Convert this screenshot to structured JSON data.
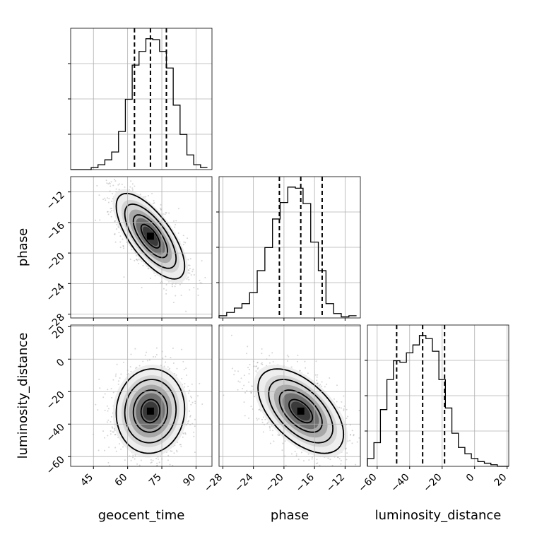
{
  "chart_data": {
    "type": "corner",
    "parameters": [
      "geocent_time",
      "phase",
      "luminosity_distance"
    ],
    "axis_labels": {
      "x": [
        "geocent_time",
        "phase",
        "luminosity_distance"
      ],
      "y": [
        "",
        "phase",
        "luminosity_distance"
      ]
    },
    "ranges": {
      "geocent_time": [
        35,
        97
      ],
      "phase": [
        -28.5,
        -10
      ],
      "luminosity_distance": [
        -66,
        21
      ]
    },
    "ticks": {
      "geocent_time": [
        45,
        60,
        75,
        90
      ],
      "phase": [
        -28,
        -24,
        -20,
        -16,
        -12
      ],
      "luminosity_distance": [
        -60,
        -40,
        -20,
        0,
        20
      ]
    },
    "tick_labels": {
      "geocent_time": [
        "45",
        "60",
        "75",
        "90"
      ],
      "phase": [
        "−28",
        "−24",
        "−20",
        "−16",
        "−12"
      ],
      "luminosity_distance": [
        "−60",
        "−40",
        "−20",
        "0",
        "20"
      ]
    },
    "quantiles": {
      "geocent_time": [
        63,
        70,
        77
      ],
      "phase": [
        -20.6,
        -17.8,
        -15.0
      ],
      "luminosity_distance": [
        -48,
        -32,
        -18.5
      ]
    },
    "histograms": {
      "geocent_time": {
        "edges": [
          35,
          38,
          41,
          44,
          47,
          50,
          53,
          56,
          59,
          62,
          65,
          68,
          71,
          74,
          77,
          80,
          83,
          86,
          89,
          92,
          95
        ],
        "counts": [
          0,
          0,
          0,
          2,
          5,
          10,
          18,
          39,
          72,
          107,
          121,
          134,
          133,
          121,
          104,
          66,
          36,
          15,
          5,
          2
        ]
      },
      "phase": {
        "edges": [
          -28.5,
          -27.5,
          -26.5,
          -25.5,
          -24.5,
          -23.5,
          -22.5,
          -21.5,
          -20.5,
          -19.5,
          -18.5,
          -17.5,
          -16.5,
          -15.5,
          -14.5,
          -13.5,
          -12.5,
          -11.5,
          -10.5
        ],
        "counts": [
          2,
          5,
          9,
          13,
          23,
          43,
          64,
          90,
          105,
          119,
          118,
          104,
          69,
          43,
          13,
          4,
          1,
          2
        ]
      },
      "luminosity_distance": {
        "edges": [
          -66,
          -62,
          -58,
          -54,
          -50,
          -46,
          -42,
          -38,
          -34,
          -30,
          -26,
          -22,
          -18,
          -14,
          -10,
          -6,
          -2,
          2,
          6,
          10,
          14,
          18,
          21
        ],
        "counts": [
          5,
          15,
          36,
          55,
          67,
          66,
          72,
          77,
          83,
          81,
          73,
          55,
          37,
          21,
          12,
          8,
          5,
          3,
          2,
          1,
          0,
          0
        ]
      }
    },
    "contour_levels": [
      "0.5",
      "1",
      "1.5",
      "2"
    ],
    "grid": true
  }
}
